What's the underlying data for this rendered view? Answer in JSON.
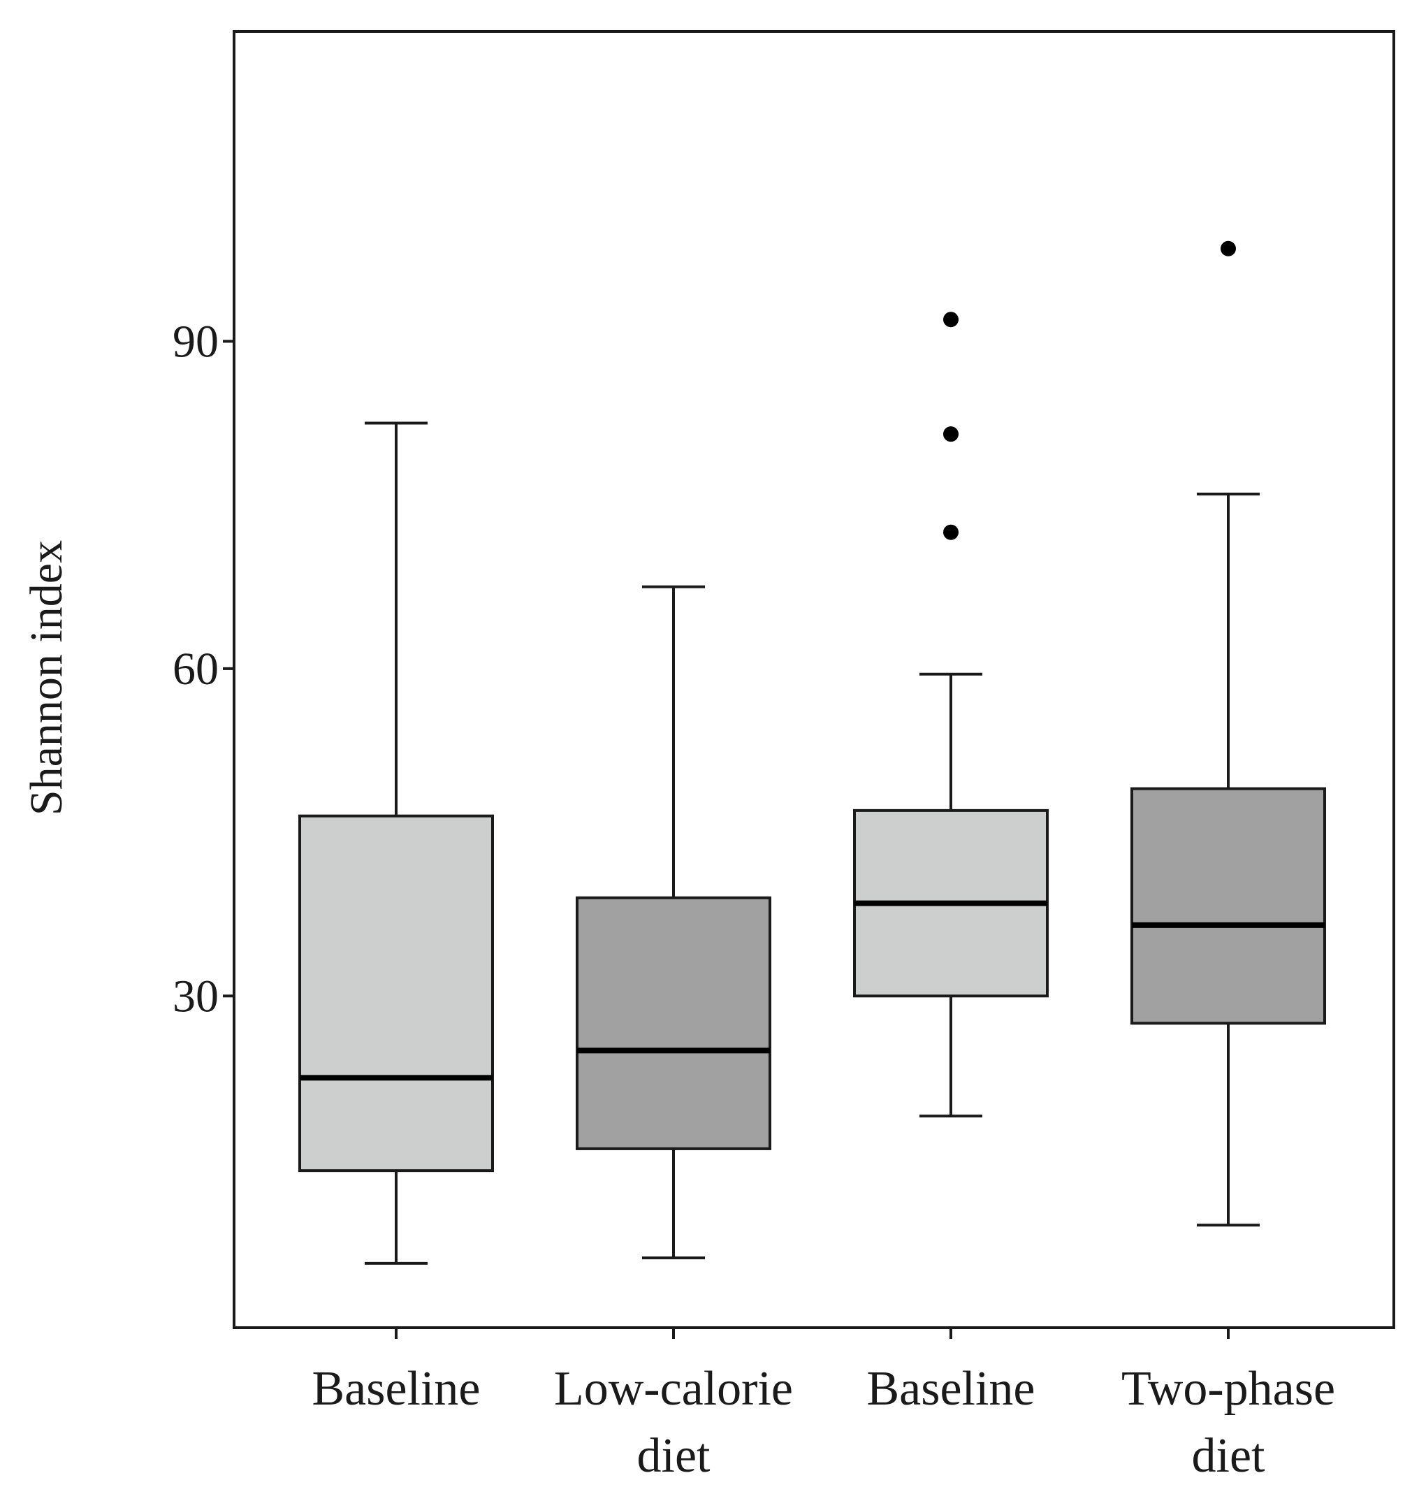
{
  "chart_data": {
    "type": "box",
    "title": "",
    "xlabel": "",
    "ylabel": "Shannon index",
    "ylim": [
      -0.4,
      118.4
    ],
    "yticks": [
      30,
      60,
      90
    ],
    "grid": false,
    "legend": "none",
    "categories": [
      {
        "lines": [
          "Baseline"
        ]
      },
      {
        "lines": [
          "Low-calorie",
          "diet"
        ]
      },
      {
        "lines": [
          "Baseline"
        ]
      },
      {
        "lines": [
          "Two-phase",
          "diet"
        ]
      }
    ],
    "boxes": [
      {
        "whisker_low": 5.5,
        "q1": 14,
        "median": 22.5,
        "q3": 46.5,
        "whisker_high": 82.5,
        "outliers": [],
        "color": "#cdcfce"
      },
      {
        "whisker_low": 6,
        "q1": 16,
        "median": 25,
        "q3": 39,
        "whisker_high": 67.5,
        "outliers": [],
        "color": "#a0a1a0"
      },
      {
        "whisker_low": 19,
        "q1": 30,
        "median": 38.5,
        "q3": 47,
        "whisker_high": 59.5,
        "outliers": [
          72.5,
          81.5,
          92
        ],
        "color": "#cdcfce"
      },
      {
        "whisker_low": 9,
        "q1": 27.5,
        "median": 36.5,
        "q3": 49,
        "whisker_high": 76,
        "outliers": [
          98.5
        ],
        "color": "#a0a1a0"
      }
    ]
  }
}
